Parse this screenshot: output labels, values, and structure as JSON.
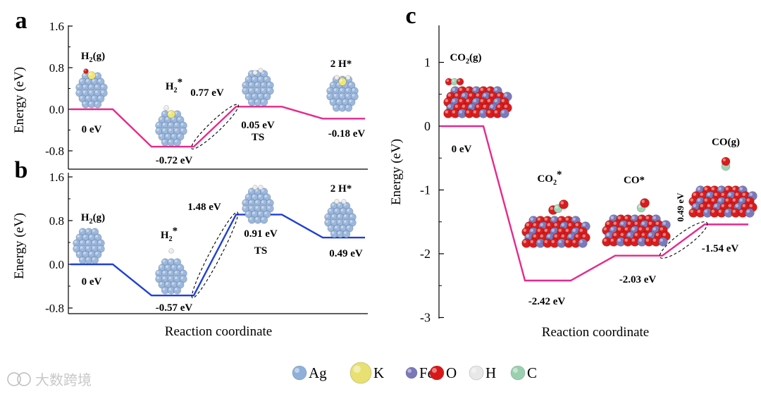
{
  "figure": {
    "panel_labels": [
      "a",
      "b",
      "c"
    ],
    "legend": [
      {
        "symbol": "Ag",
        "color": "#8fb0d9"
      },
      {
        "symbol": "K",
        "color": "#e8e070"
      },
      {
        "symbol": "Fe",
        "color": "#7a78b8"
      },
      {
        "symbol": "O",
        "color": "#d81818"
      },
      {
        "symbol": "H",
        "color": "#e8e8e8"
      },
      {
        "symbol": "C",
        "color": "#9ad0b0"
      }
    ],
    "watermark": "大数跨境"
  },
  "chart_data": [
    {
      "panel": "a",
      "type": "line",
      "ylabel": "Energy (eV)",
      "xlabel": "",
      "ylim": [
        -1.1,
        1.6
      ],
      "yticks": [
        "1.6",
        "0.8",
        "0.0",
        "-0.8"
      ],
      "ytick_values": [
        1.6,
        0.8,
        0.0,
        -0.8
      ],
      "color": "#e8288c",
      "states": [
        {
          "label": "H₂(g)",
          "energy": 0.0,
          "energy_label": "0 eV"
        },
        {
          "label": "H₂*",
          "energy": -0.72,
          "energy_label": "-0.72 eV"
        },
        {
          "label": "TS",
          "energy": 0.05,
          "energy_label": "0.05 eV"
        },
        {
          "label": "2 H*",
          "energy": -0.18,
          "energy_label": "-0.18 eV"
        }
      ],
      "barrier_label": "0.77 eV"
    },
    {
      "panel": "b",
      "type": "line",
      "ylabel": "Energy (eV)",
      "xlabel": "Reaction coordinate",
      "ylim": [
        -1.0,
        1.8
      ],
      "yticks": [
        "1.6",
        "0.8",
        "0.0",
        "-0.8"
      ],
      "ytick_values": [
        1.6,
        0.8,
        0.0,
        -0.8
      ],
      "color": "#1f3fd8",
      "states": [
        {
          "label": "H₂(g)",
          "energy": 0.0,
          "energy_label": "0 eV"
        },
        {
          "label": "H₂*",
          "energy": -0.57,
          "energy_label": "-0.57 eV"
        },
        {
          "label": "TS",
          "energy": 0.91,
          "energy_label": "0.91 eV"
        },
        {
          "label": "2 H*",
          "energy": 0.49,
          "energy_label": "0.49 eV"
        }
      ],
      "barrier_label": "1.48 eV"
    },
    {
      "panel": "c",
      "type": "line",
      "ylabel": "Energy (eV)",
      "xlabel": "Reaction coordinate",
      "ylim": [
        -3.0,
        1.5
      ],
      "yticks": [
        "1",
        "0",
        "-1",
        "-2",
        "-3"
      ],
      "ytick_values": [
        1,
        0,
        -1,
        -2,
        -3
      ],
      "color": "#e8288c",
      "states": [
        {
          "label": "CO₂(g)",
          "energy": 0.0,
          "energy_label": "0 eV"
        },
        {
          "label": "CO₂*",
          "energy": -2.42,
          "energy_label": "-2.42 eV"
        },
        {
          "label": "CO*",
          "energy": -2.03,
          "energy_label": "-2.03 eV"
        },
        {
          "label": "CO(g)",
          "energy": -1.54,
          "energy_label": "-1.54 eV"
        }
      ],
      "barrier_label": "0.49 eV"
    }
  ]
}
